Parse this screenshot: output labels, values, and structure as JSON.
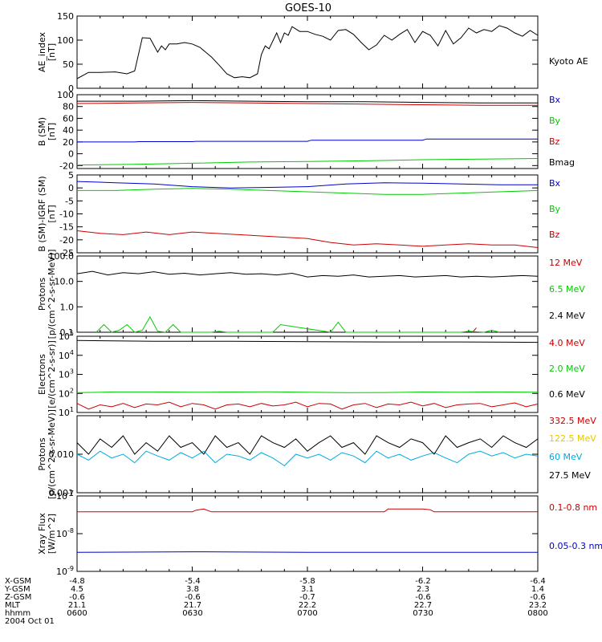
{
  "title": "GOES-10",
  "orbit_table": {
    "row_labels": [
      "X-GSM",
      "Y-GSM",
      "Z-GSM",
      "MLT",
      "hhmm",
      "2004 Oct 01"
    ],
    "columns": [
      [
        "-4.8",
        "4.5",
        "-0.6",
        "21.1",
        "0600"
      ],
      [
        "-5.4",
        "3.8",
        "-0.6",
        "21.7",
        "0630"
      ],
      [
        "-5.8",
        "3.1",
        "-0.7",
        "22.2",
        "0700"
      ],
      [
        "-6.2",
        "2.3",
        "-0.6",
        "22.7",
        "0730"
      ],
      [
        "-6.4",
        "1.4",
        "-0.6",
        "23.2",
        "0800"
      ]
    ]
  },
  "colors": {
    "black": "#000000",
    "red": "#cc0000",
    "green": "#00cc00",
    "blue": "#0000cc",
    "yellow": "#e6c800",
    "cyan": "#00aadd"
  },
  "chart_data": [
    {
      "type": "line",
      "ylabel": "AE_index\n[nT]",
      "ylim": [
        0,
        150
      ],
      "ticks": [
        "0",
        "50",
        "100",
        "150"
      ],
      "scale": "linear",
      "series": [
        {
          "name": "Kyoto AE",
          "color": "#000000",
          "x": [
            0,
            3,
            6,
            10,
            13,
            15,
            17,
            19,
            21,
            22,
            23,
            24,
            26,
            28,
            30,
            32,
            35,
            37,
            39,
            41,
            43,
            45,
            47,
            48,
            49,
            50,
            52,
            53,
            54,
            55,
            56,
            58,
            60,
            62,
            64,
            66,
            68,
            70,
            72,
            74,
            76,
            78,
            80,
            82,
            84,
            86,
            88,
            90,
            92,
            94,
            96,
            98,
            100,
            102,
            104,
            106,
            108,
            110,
            112,
            114,
            116,
            118,
            120
          ],
          "values": [
            20,
            33,
            33,
            34,
            30,
            36,
            105,
            104,
            75,
            88,
            80,
            92,
            92,
            95,
            92,
            85,
            65,
            48,
            30,
            22,
            24,
            22,
            30,
            70,
            88,
            82,
            115,
            95,
            115,
            110,
            128,
            118,
            118,
            112,
            108,
            100,
            120,
            122,
            112,
            95,
            80,
            90,
            110,
            100,
            112,
            122,
            95,
            118,
            110,
            88,
            120,
            92,
            105,
            125,
            115,
            122,
            118,
            130,
            125,
            115,
            108,
            120,
            110
          ]
        }
      ]
    },
    {
      "type": "line",
      "ylabel": "B (SM)\n[nT]",
      "ylim": [
        -25,
        100
      ],
      "ticks": [
        "-20",
        "0",
        "20",
        "40",
        "60",
        "80",
        "100"
      ],
      "scale": "linear",
      "series": [
        {
          "name": "Bx",
          "color": "#0000cc",
          "x": [
            0,
            15,
            16,
            30,
            31,
            60,
            61,
            90,
            91,
            120
          ],
          "values": [
            20,
            20,
            20.5,
            20.5,
            21,
            21,
            23,
            23,
            25,
            25
          ]
        },
        {
          "name": "By",
          "color": "#00cc00",
          "x": [
            0,
            15,
            30,
            45,
            60,
            75,
            90,
            105,
            120
          ],
          "values": [
            -19,
            -18,
            -16,
            -14,
            -13,
            -12,
            -10,
            -9,
            -8
          ]
        },
        {
          "name": "Bz",
          "color": "#cc0000",
          "x": [
            0,
            15,
            30,
            45,
            60,
            75,
            90,
            105,
            120
          ],
          "values": [
            85,
            86,
            87,
            86,
            85,
            84,
            83,
            82,
            82
          ]
        },
        {
          "name": "Bmag",
          "color": "#000000",
          "x": [
            0,
            15,
            30,
            45,
            60,
            75,
            90,
            105,
            120
          ],
          "values": [
            89,
            89,
            90,
            89,
            88,
            88,
            87,
            86,
            86
          ]
        }
      ]
    },
    {
      "type": "line",
      "ylabel": "B (SM)-IGRF (SM)\n[nT]",
      "ylim": [
        -25,
        5
      ],
      "ticks": [
        "-25",
        "-20",
        "-15",
        "-10",
        "-5",
        "0",
        "5"
      ],
      "scale": "linear",
      "series": [
        {
          "name": "Bx",
          "color": "#0000cc",
          "x": [
            0,
            10,
            20,
            30,
            40,
            50,
            60,
            70,
            80,
            90,
            100,
            110,
            120
          ],
          "values": [
            2.5,
            2.0,
            1.5,
            0.5,
            0.0,
            0.2,
            0.5,
            1.5,
            2.0,
            1.8,
            1.5,
            1.2,
            1.2
          ]
        },
        {
          "name": "By",
          "color": "#00cc00",
          "x": [
            0,
            10,
            20,
            30,
            40,
            50,
            60,
            70,
            80,
            90,
            100,
            110,
            120
          ],
          "values": [
            -1.0,
            -1.0,
            -0.5,
            -0.2,
            -0.5,
            -1.0,
            -1.5,
            -2.0,
            -2.5,
            -2.5,
            -2.0,
            -1.5,
            -1.0
          ]
        },
        {
          "name": "Bz",
          "color": "#cc0000",
          "x": [
            0,
            6,
            12,
            18,
            24,
            30,
            36,
            42,
            48,
            54,
            60,
            66,
            72,
            78,
            84,
            90,
            96,
            102,
            108,
            114,
            120
          ],
          "values": [
            -16.5,
            -17.5,
            -18.0,
            -17.0,
            -18.0,
            -17.0,
            -17.5,
            -18.0,
            -18.5,
            -19.0,
            -19.5,
            -21.0,
            -22.0,
            -21.5,
            -22.0,
            -22.5,
            -22.0,
            -21.5,
            -22.0,
            -22.0,
            -23.0
          ]
        }
      ]
    },
    {
      "type": "line",
      "ylabel": "Protons\n[p/(cm^2-s-sr-MeV)]",
      "ylim": [
        0.1,
        100
      ],
      "ticks": [
        "0.1",
        "1.0",
        "10.0",
        "100.0"
      ],
      "scale": "log",
      "series": [
        {
          "name": "12 MeV",
          "color": "#cc0000",
          "x": [
            103,
            104
          ],
          "values": [
            0.1,
            0.15
          ]
        },
        {
          "name": "6.5 MeV",
          "color": "#00cc00",
          "x": [
            5,
            7,
            9,
            11,
            13,
            15,
            17,
            19,
            21,
            23,
            25,
            27,
            33,
            35,
            37,
            39,
            51,
            53,
            66,
            68,
            70,
            100,
            102,
            106,
            108,
            110
          ],
          "values": [
            0.1,
            0.2,
            0.1,
            0.12,
            0.2,
            0.1,
            0.12,
            0.4,
            0.11,
            0.1,
            0.2,
            0.1,
            0.1,
            0.1,
            0.11,
            0.1,
            0.1,
            0.2,
            0.1,
            0.25,
            0.1,
            0.1,
            0.11,
            0.1,
            0.12,
            0.1
          ]
        },
        {
          "name": "2.4 MeV",
          "color": "#000000",
          "x": [
            0,
            4,
            8,
            12,
            16,
            20,
            24,
            28,
            32,
            36,
            40,
            44,
            48,
            52,
            56,
            60,
            64,
            68,
            72,
            76,
            80,
            84,
            88,
            92,
            96,
            100,
            104,
            108,
            112,
            116,
            120
          ],
          "values": [
            20,
            25,
            18,
            22,
            20,
            24,
            19,
            21,
            18,
            20,
            22,
            19,
            20,
            18,
            21,
            15,
            17,
            16,
            18,
            15,
            16,
            17,
            15,
            16,
            17,
            15,
            16,
            15,
            16,
            17,
            16
          ]
        }
      ]
    },
    {
      "type": "line",
      "ylabel": "Electrons\n[e/(cm^2-s-sr)]",
      "ylim": [
        10,
        100000
      ],
      "ticks": [
        "10^1",
        "10^2",
        "10^3",
        "10^4",
        "10^5"
      ],
      "scale": "log",
      "series": [
        {
          "name": "4.0 MeV",
          "color": "#cc0000",
          "x": [
            0,
            3,
            6,
            9,
            12,
            15,
            18,
            21,
            24,
            27,
            30,
            33,
            36,
            39,
            42,
            45,
            48,
            51,
            54,
            57,
            60,
            63,
            66,
            69,
            72,
            75,
            78,
            81,
            84,
            87,
            90,
            93,
            96,
            99,
            102,
            105,
            108,
            111,
            114,
            117,
            120
          ],
          "values": [
            30,
            15,
            25,
            20,
            30,
            18,
            28,
            25,
            35,
            20,
            30,
            25,
            15,
            25,
            28,
            20,
            30,
            22,
            25,
            35,
            20,
            30,
            28,
            15,
            25,
            30,
            18,
            28,
            25,
            35,
            22,
            30,
            18,
            25,
            28,
            30,
            20,
            25,
            32,
            20,
            28
          ]
        },
        {
          "name": "2.0 MeV",
          "color": "#00cc00",
          "x": [
            0,
            10,
            20,
            30,
            40,
            50,
            60,
            70,
            80,
            90,
            100,
            110,
            120
          ],
          "values": [
            110,
            120,
            120,
            115,
            118,
            122,
            115,
            110,
            112,
            118,
            115,
            120,
            115
          ]
        },
        {
          "name": "0.6 MeV",
          "color": "#000000",
          "x": [
            0,
            20,
            40,
            60,
            80,
            100,
            120
          ],
          "values": [
            60000,
            55000,
            55000,
            52000,
            50000,
            50000,
            48000
          ]
        }
      ]
    },
    {
      "type": "line",
      "ylabel": "Protons\n[p/(cm^2-s-sr-MeV)]",
      "ylim": [
        0.001,
        0.1
      ],
      "ticks": [
        "0.001",
        "0.010"
      ],
      "scale": "log",
      "series": [
        {
          "name": "332.5 MeV",
          "color": "#cc0000",
          "x": [],
          "values": []
        },
        {
          "name": "122.5 MeV",
          "color": "#e6c800",
          "x": [],
          "values": []
        },
        {
          "name": "60 MeV",
          "color": "#00aadd",
          "x": [
            0,
            3,
            6,
            9,
            12,
            15,
            18,
            21,
            24,
            27,
            30,
            33,
            36,
            39,
            42,
            45,
            48,
            51,
            54,
            57,
            60,
            63,
            66,
            69,
            72,
            75,
            78,
            81,
            84,
            87,
            90,
            93,
            96,
            99,
            102,
            105,
            108,
            111,
            114,
            117,
            120
          ],
          "values": [
            0.01,
            0.007,
            0.012,
            0.008,
            0.01,
            0.006,
            0.012,
            0.009,
            0.007,
            0.011,
            0.008,
            0.012,
            0.006,
            0.01,
            0.009,
            0.007,
            0.011,
            0.008,
            0.005,
            0.01,
            0.008,
            0.01,
            0.007,
            0.011,
            0.009,
            0.006,
            0.012,
            0.008,
            0.01,
            0.007,
            0.009,
            0.011,
            0.008,
            0.006,
            0.01,
            0.012,
            0.009,
            0.011,
            0.008,
            0.01,
            0.009
          ]
        },
        {
          "name": "27.5 MeV",
          "color": "#000000",
          "x": [
            0,
            3,
            6,
            9,
            12,
            15,
            18,
            21,
            24,
            27,
            30,
            33,
            36,
            39,
            42,
            45,
            48,
            51,
            54,
            57,
            60,
            63,
            66,
            69,
            72,
            75,
            78,
            81,
            84,
            87,
            90,
            93,
            96,
            99,
            102,
            105,
            108,
            111,
            114,
            117,
            120
          ],
          "values": [
            0.02,
            0.01,
            0.025,
            0.015,
            0.03,
            0.01,
            0.02,
            0.012,
            0.03,
            0.015,
            0.02,
            0.01,
            0.03,
            0.015,
            0.02,
            0.01,
            0.03,
            0.02,
            0.015,
            0.025,
            0.012,
            0.02,
            0.03,
            0.015,
            0.02,
            0.01,
            0.03,
            0.02,
            0.015,
            0.025,
            0.02,
            0.01,
            0.03,
            0.015,
            0.02,
            0.025,
            0.015,
            0.03,
            0.02,
            0.015,
            0.025
          ]
        }
      ]
    },
    {
      "type": "line",
      "ylabel": "Xray Flux\n[W/m^2]",
      "ylim": [
        1e-09,
        1e-07
      ],
      "ticks": [
        "10^-9",
        "10^-8",
        "10^-7"
      ],
      "scale": "log",
      "series": [
        {
          "name": "0.1-0.8 nm",
          "color": "#cc0000",
          "x": [
            0,
            30,
            31,
            33,
            35,
            80,
            81,
            90,
            92,
            93,
            120
          ],
          "values": [
            3.8e-08,
            3.8e-08,
            4.2e-08,
            4.5e-08,
            3.8e-08,
            3.8e-08,
            4.5e-08,
            4.5e-08,
            4.3e-08,
            3.8e-08,
            3.8e-08
          ]
        },
        {
          "name": "0.05-0.3 nm",
          "color": "#0000cc",
          "x": [
            0,
            30,
            60,
            90,
            120
          ],
          "values": [
            3.2e-09,
            3.3e-09,
            3.2e-09,
            3.2e-09,
            3.2e-09
          ]
        }
      ]
    }
  ]
}
